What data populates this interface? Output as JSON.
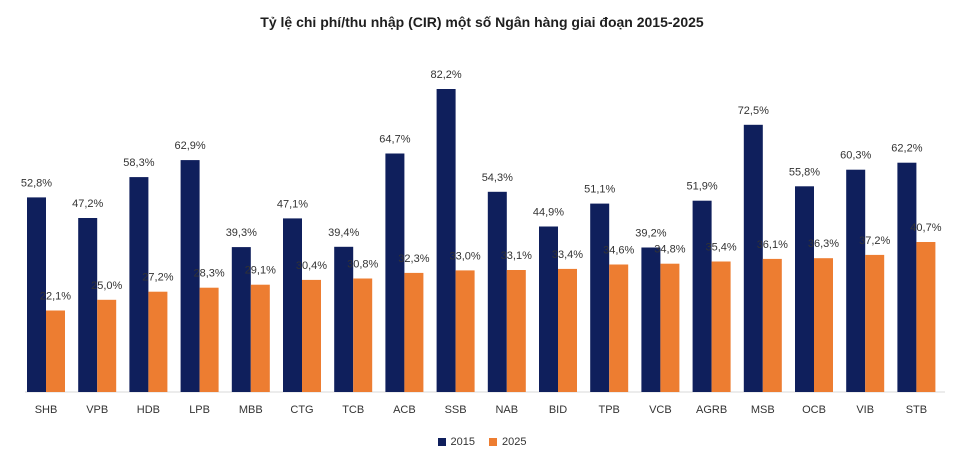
{
  "chart_data": {
    "type": "bar",
    "title": "Tỷ lệ chi phí/thu nhập (CIR) một số Ngân hàng giai đoạn 2015-2025",
    "categories": [
      "SHB",
      "VPB",
      "HDB",
      "LPB",
      "MBB",
      "CTG",
      "TCB",
      "ACB",
      "SSB",
      "NAB",
      "BID",
      "TPB",
      "VCB",
      "AGRB",
      "MSB",
      "OCB",
      "VIB",
      "STB"
    ],
    "series": [
      {
        "name": "2015",
        "color": "#0f1f5c",
        "values": [
          52.8,
          47.2,
          58.3,
          62.9,
          39.3,
          47.1,
          39.4,
          64.7,
          82.2,
          54.3,
          44.9,
          51.1,
          39.2,
          51.9,
          72.5,
          55.8,
          60.3,
          62.2
        ],
        "labels": [
          "52,8%",
          "47,2%",
          "58,3%",
          "62,9%",
          "39,3%",
          "47,1%",
          "39,4%",
          "64,7%",
          "82,2%",
          "54,3%",
          "44,9%",
          "51,1%",
          "39,2%",
          "51,9%",
          "72,5%",
          "55,8%",
          "60,3%",
          "62,2%"
        ]
      },
      {
        "name": "2025",
        "color": "#ed7d31",
        "values": [
          22.1,
          25.0,
          27.2,
          28.3,
          29.1,
          30.4,
          30.8,
          32.3,
          33.0,
          33.1,
          33.4,
          34.6,
          34.8,
          35.4,
          36.1,
          36.3,
          37.2,
          40.7
        ],
        "labels": [
          "22,1%",
          "25,0%",
          "27,2%",
          "28,3%",
          "29,1%",
          "30,4%",
          "30,8%",
          "32,3%",
          "33,0%",
          "33,1%",
          "33,4%",
          "34,6%",
          "34,8%",
          "35,4%",
          "36,1%",
          "36,3%",
          "37,2%",
          "40,7%"
        ]
      }
    ],
    "ylim": [
      0,
      82.2
    ],
    "grid": false,
    "legend_position": "bottom"
  }
}
